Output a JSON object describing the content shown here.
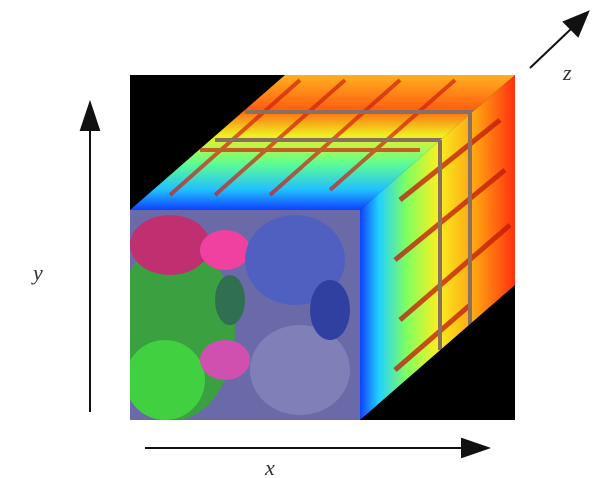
{
  "axes": {
    "x": "x",
    "y": "y",
    "z": "z"
  }
}
